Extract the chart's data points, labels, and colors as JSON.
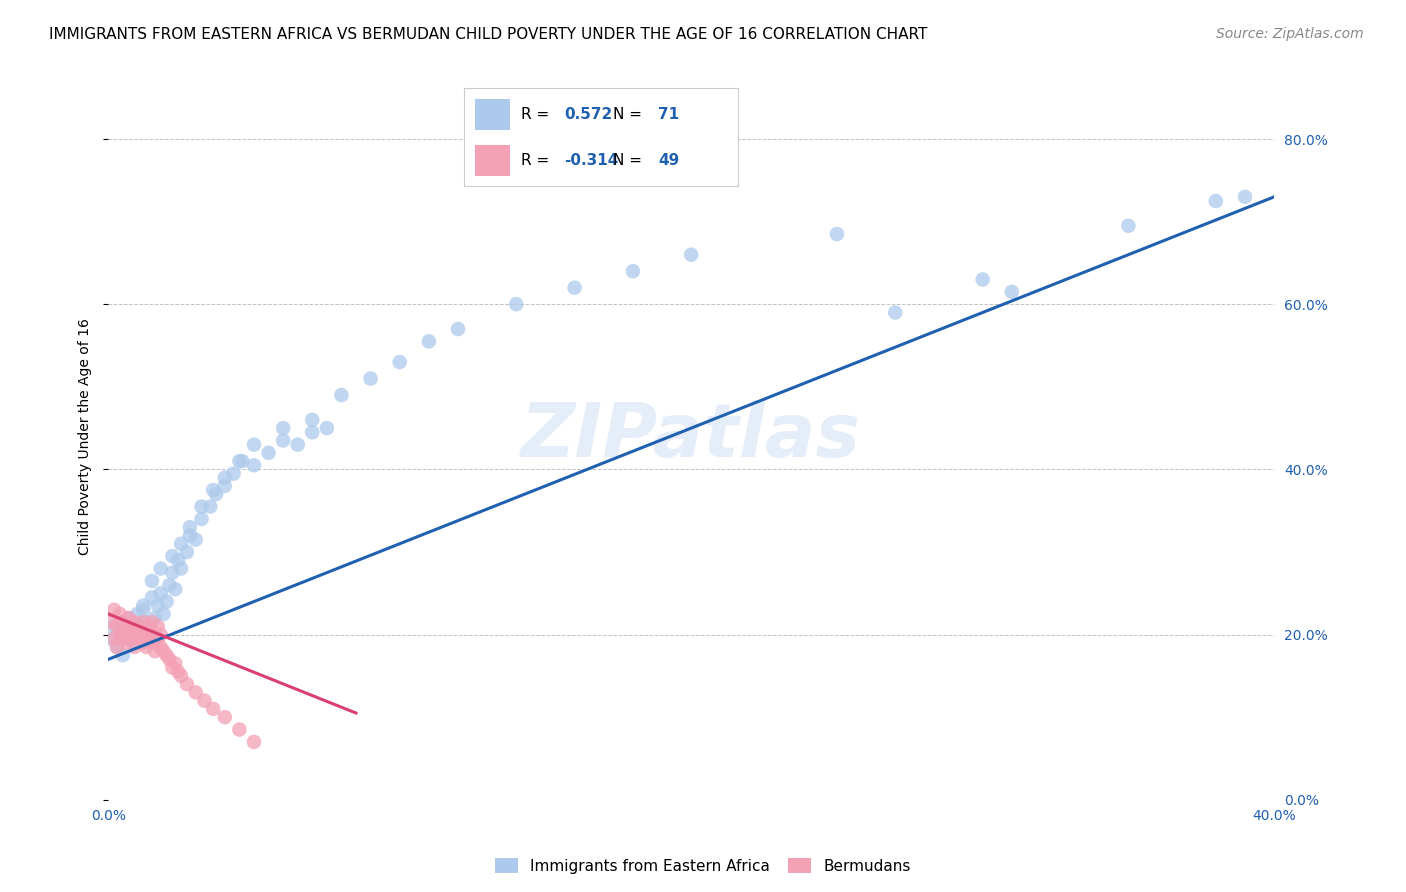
{
  "title": "IMMIGRANTS FROM EASTERN AFRICA VS BERMUDAN CHILD POVERTY UNDER THE AGE OF 16 CORRELATION CHART",
  "source": "Source: ZipAtlas.com",
  "xlabel_blue": "Immigrants from Eastern Africa",
  "xlabel_pink": "Bermudans",
  "ylabel": "Child Poverty Under the Age of 16",
  "watermark": "ZIPatlas",
  "R_blue": 0.572,
  "N_blue": 71,
  "R_pink": -0.314,
  "N_pink": 49,
  "blue_color": "#adc9eb",
  "pink_color": "#f4a0b5",
  "blue_line_color": "#2060b0",
  "pink_line_color": "#d94070",
  "grid_color": "#bbbbbb",
  "background_color": "#ffffff",
  "xlim": [
    0.0,
    0.4
  ],
  "ylim": [
    0.0,
    0.88
  ],
  "yticks": [
    0.0,
    0.2,
    0.4,
    0.6,
    0.8
  ],
  "xticks": [
    0.0,
    0.4
  ],
  "blue_scatter_x": [
    0.001,
    0.002,
    0.003,
    0.004,
    0.005,
    0.006,
    0.007,
    0.008,
    0.009,
    0.01,
    0.011,
    0.012,
    0.013,
    0.014,
    0.015,
    0.016,
    0.017,
    0.018,
    0.019,
    0.02,
    0.021,
    0.022,
    0.023,
    0.024,
    0.025,
    0.027,
    0.028,
    0.03,
    0.032,
    0.035,
    0.037,
    0.04,
    0.043,
    0.046,
    0.05,
    0.055,
    0.06,
    0.065,
    0.07,
    0.075,
    0.005,
    0.008,
    0.012,
    0.015,
    0.018,
    0.022,
    0.025,
    0.028,
    0.032,
    0.036,
    0.04,
    0.045,
    0.05,
    0.06,
    0.07,
    0.08,
    0.09,
    0.1,
    0.11,
    0.12,
    0.14,
    0.16,
    0.18,
    0.2,
    0.25,
    0.3,
    0.35,
    0.38,
    0.39,
    0.31,
    0.27
  ],
  "blue_scatter_y": [
    0.195,
    0.21,
    0.185,
    0.2,
    0.215,
    0.195,
    0.22,
    0.205,
    0.19,
    0.225,
    0.21,
    0.23,
    0.215,
    0.195,
    0.245,
    0.22,
    0.235,
    0.25,
    0.225,
    0.24,
    0.26,
    0.275,
    0.255,
    0.29,
    0.28,
    0.3,
    0.32,
    0.315,
    0.34,
    0.355,
    0.37,
    0.38,
    0.395,
    0.41,
    0.405,
    0.42,
    0.435,
    0.43,
    0.445,
    0.45,
    0.175,
    0.215,
    0.235,
    0.265,
    0.28,
    0.295,
    0.31,
    0.33,
    0.355,
    0.375,
    0.39,
    0.41,
    0.43,
    0.45,
    0.46,
    0.49,
    0.51,
    0.53,
    0.555,
    0.57,
    0.6,
    0.62,
    0.64,
    0.66,
    0.685,
    0.63,
    0.695,
    0.725,
    0.73,
    0.615,
    0.59
  ],
  "pink_scatter_x": [
    0.001,
    0.002,
    0.002,
    0.003,
    0.003,
    0.004,
    0.004,
    0.005,
    0.005,
    0.006,
    0.006,
    0.007,
    0.007,
    0.008,
    0.008,
    0.009,
    0.009,
    0.01,
    0.01,
    0.011,
    0.011,
    0.012,
    0.012,
    0.013,
    0.013,
    0.014,
    0.014,
    0.015,
    0.015,
    0.016,
    0.016,
    0.017,
    0.017,
    0.018,
    0.018,
    0.019,
    0.02,
    0.021,
    0.022,
    0.023,
    0.024,
    0.025,
    0.027,
    0.03,
    0.033,
    0.036,
    0.04,
    0.045,
    0.05
  ],
  "pink_scatter_y": [
    0.215,
    0.195,
    0.23,
    0.185,
    0.21,
    0.2,
    0.225,
    0.195,
    0.215,
    0.205,
    0.19,
    0.22,
    0.2,
    0.21,
    0.195,
    0.185,
    0.215,
    0.2,
    0.21,
    0.195,
    0.205,
    0.19,
    0.215,
    0.2,
    0.185,
    0.195,
    0.21,
    0.2,
    0.215,
    0.19,
    0.18,
    0.195,
    0.21,
    0.185,
    0.2,
    0.18,
    0.175,
    0.17,
    0.16,
    0.165,
    0.155,
    0.15,
    0.14,
    0.13,
    0.12,
    0.11,
    0.1,
    0.085,
    0.07
  ],
  "blue_line_x": [
    0.0,
    0.4
  ],
  "blue_line_y": [
    0.17,
    0.73
  ],
  "pink_line_x": [
    0.0,
    0.085
  ],
  "pink_line_y": [
    0.225,
    0.105
  ],
  "title_fontsize": 11,
  "axis_label_fontsize": 10,
  "tick_fontsize": 10,
  "legend_fontsize": 11,
  "source_fontsize": 10
}
